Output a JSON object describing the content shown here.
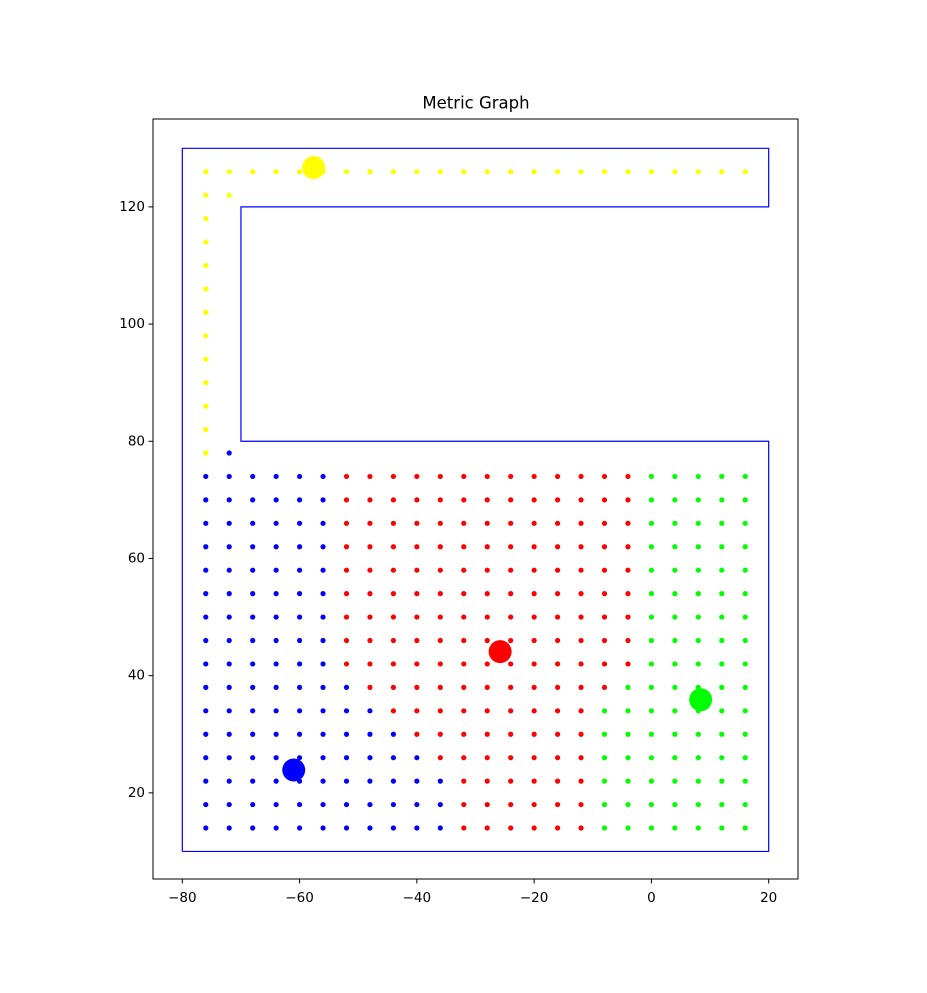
{
  "chart_data": {
    "type": "scatter",
    "title": "Metric Graph",
    "xlim": [
      -85,
      25
    ],
    "ylim": [
      5.3,
      135
    ],
    "xticks": [
      {
        "value": -80,
        "label": "−80"
      },
      {
        "value": -60,
        "label": "−60"
      },
      {
        "value": -40,
        "label": "−40"
      },
      {
        "value": -20,
        "label": "−20"
      },
      0,
      20
    ],
    "yticks": [
      20,
      40,
      60,
      80,
      100,
      120
    ],
    "boundary": {
      "color": "#0000ff",
      "x": [
        -80,
        20,
        20,
        -70,
        -70,
        20,
        20,
        -80,
        -80
      ],
      "y": [
        10,
        10,
        80,
        80,
        120,
        120,
        130,
        130,
        10
      ]
    },
    "series": [
      {
        "color": "#0000ff",
        "x": [
          -72,
          -76,
          -72,
          -68,
          -64,
          -60,
          -56,
          -76,
          -72,
          -68,
          -64,
          -60,
          -56,
          -76,
          -72,
          -68,
          -64,
          -60,
          -56,
          -76,
          -72,
          -68,
          -64,
          -60,
          -56,
          -76,
          -72,
          -68,
          -64,
          -60,
          -56,
          -76,
          -72,
          -68,
          -64,
          -60,
          -56,
          -76,
          -72,
          -68,
          -64,
          -60,
          -56,
          -76,
          -72,
          -68,
          -64,
          -60,
          -56,
          -76,
          -72,
          -68,
          -64,
          -60,
          -56,
          -76,
          -72,
          -68,
          -64,
          -60,
          -56,
          -52,
          -76,
          -72,
          -68,
          -64,
          -60,
          -56,
          -52,
          -48,
          -76,
          -72,
          -68,
          -64,
          -60,
          -56,
          -52,
          -48,
          -44,
          -76,
          -72,
          -68,
          -64,
          -60,
          -56,
          -52,
          -48,
          -44,
          -40,
          -76,
          -72,
          -68,
          -64,
          -60,
          -56,
          -52,
          -48,
          -44,
          -40,
          -36,
          -76,
          -72,
          -68,
          -64,
          -60,
          -56,
          -52,
          -48,
          -44,
          -40,
          -36,
          -76,
          -72,
          -68,
          -64,
          -60,
          -56,
          -52,
          -48,
          -44,
          -40,
          -36
        ],
        "y": [
          78,
          74,
          74,
          74,
          74,
          74,
          74,
          70,
          70,
          70,
          70,
          70,
          70,
          66,
          66,
          66,
          66,
          66,
          66,
          62,
          62,
          62,
          62,
          62,
          62,
          58,
          58,
          58,
          58,
          58,
          58,
          54,
          54,
          54,
          54,
          54,
          54,
          50,
          50,
          50,
          50,
          50,
          50,
          46,
          46,
          46,
          46,
          46,
          46,
          42,
          42,
          42,
          42,
          42,
          42,
          38,
          38,
          38,
          38,
          38,
          38,
          38,
          34,
          34,
          34,
          34,
          34,
          34,
          34,
          34,
          30,
          30,
          30,
          30,
          30,
          30,
          30,
          30,
          30,
          26,
          26,
          26,
          26,
          26,
          26,
          26,
          26,
          26,
          26,
          22,
          22,
          22,
          22,
          22,
          22,
          22,
          22,
          22,
          22,
          22,
          18,
          18,
          18,
          18,
          18,
          18,
          18,
          18,
          18,
          18,
          18,
          14,
          14,
          14,
          14,
          14,
          14,
          14,
          14,
          14,
          14,
          14
        ]
      },
      {
        "color": "#ff0000",
        "x": [
          -52,
          -48,
          -44,
          -40,
          -36,
          -32,
          -28,
          -24,
          -20,
          -16,
          -12,
          -8,
          -4,
          -52,
          -48,
          -44,
          -40,
          -36,
          -32,
          -28,
          -24,
          -20,
          -16,
          -12,
          -8,
          -4,
          -52,
          -48,
          -44,
          -40,
          -36,
          -32,
          -28,
          -24,
          -20,
          -16,
          -12,
          -8,
          -4,
          -52,
          -48,
          -44,
          -40,
          -36,
          -32,
          -28,
          -24,
          -20,
          -16,
          -12,
          -8,
          -4,
          -52,
          -48,
          -44,
          -40,
          -36,
          -32,
          -28,
          -24,
          -20,
          -16,
          -12,
          -8,
          -4,
          -52,
          -48,
          -44,
          -40,
          -36,
          -32,
          -28,
          -24,
          -20,
          -16,
          -12,
          -8,
          -4,
          -52,
          -48,
          -44,
          -40,
          -36,
          -32,
          -28,
          -24,
          -20,
          -16,
          -12,
          -8,
          -4,
          -52,
          -48,
          -44,
          -40,
          -36,
          -32,
          -28,
          -24,
          -20,
          -16,
          -12,
          -8,
          -4,
          -52,
          -48,
          -44,
          -40,
          -36,
          -32,
          -28,
          -24,
          -20,
          -16,
          -12,
          -8,
          -4,
          -48,
          -44,
          -40,
          -36,
          -32,
          -28,
          -24,
          -20,
          -16,
          -12,
          -8,
          -44,
          -40,
          -36,
          -32,
          -28,
          -24,
          -20,
          -16,
          -12,
          -40,
          -36,
          -32,
          -28,
          -24,
          -20,
          -16,
          -12,
          -36,
          -32,
          -28,
          -24,
          -20,
          -16,
          -12,
          -32,
          -28,
          -24,
          -20,
          -16,
          -12,
          -32,
          -28,
          -24,
          -20,
          -16,
          -12,
          -32,
          -28,
          -24,
          -20,
          -16,
          -12
        ],
        "y": [
          74,
          74,
          74,
          74,
          74,
          74,
          74,
          74,
          74,
          74,
          74,
          74,
          74,
          70,
          70,
          70,
          70,
          70,
          70,
          70,
          70,
          70,
          70,
          70,
          70,
          70,
          66,
          66,
          66,
          66,
          66,
          66,
          66,
          66,
          66,
          66,
          66,
          66,
          66,
          62,
          62,
          62,
          62,
          62,
          62,
          62,
          62,
          62,
          62,
          62,
          62,
          62,
          58,
          58,
          58,
          58,
          58,
          58,
          58,
          58,
          58,
          58,
          58,
          58,
          58,
          54,
          54,
          54,
          54,
          54,
          54,
          54,
          54,
          54,
          54,
          54,
          54,
          54,
          50,
          50,
          50,
          50,
          50,
          50,
          50,
          50,
          50,
          50,
          50,
          50,
          50,
          46,
          46,
          46,
          46,
          46,
          46,
          46,
          46,
          46,
          46,
          46,
          46,
          46,
          42,
          42,
          42,
          42,
          42,
          42,
          42,
          42,
          42,
          42,
          42,
          42,
          42,
          38,
          38,
          38,
          38,
          38,
          38,
          38,
          38,
          38,
          38,
          38,
          34,
          34,
          34,
          34,
          34,
          34,
          34,
          34,
          34,
          30,
          30,
          30,
          30,
          30,
          30,
          30,
          30,
          26,
          26,
          26,
          26,
          26,
          26,
          26,
          22,
          22,
          22,
          22,
          22,
          22,
          18,
          18,
          18,
          18,
          18,
          18,
          14,
          14,
          14,
          14,
          14,
          14
        ]
      },
      {
        "color": "#00ff00",
        "x": [
          0,
          4,
          8,
          12,
          16,
          0,
          4,
          8,
          12,
          16,
          0,
          4,
          8,
          12,
          16,
          0,
          4,
          8,
          12,
          16,
          0,
          4,
          8,
          12,
          16,
          0,
          4,
          8,
          12,
          16,
          0,
          4,
          8,
          12,
          16,
          0,
          4,
          8,
          12,
          16,
          0,
          4,
          8,
          12,
          16,
          -4,
          0,
          4,
          8,
          12,
          16,
          -8,
          -4,
          0,
          4,
          8,
          12,
          16,
          -8,
          -4,
          0,
          4,
          8,
          12,
          16,
          -8,
          -4,
          0,
          4,
          8,
          12,
          16,
          -8,
          -4,
          0,
          4,
          8,
          12,
          16,
          -8,
          -4,
          0,
          4,
          8,
          12,
          16,
          -8,
          -4,
          0,
          4,
          8,
          12,
          16
        ],
        "y": [
          74,
          74,
          74,
          74,
          74,
          70,
          70,
          70,
          70,
          70,
          66,
          66,
          66,
          66,
          66,
          62,
          62,
          62,
          62,
          62,
          58,
          58,
          58,
          58,
          58,
          54,
          54,
          54,
          54,
          54,
          50,
          50,
          50,
          50,
          50,
          46,
          46,
          46,
          46,
          46,
          42,
          42,
          42,
          42,
          42,
          38,
          38,
          38,
          38,
          38,
          38,
          34,
          34,
          34,
          34,
          34,
          34,
          34,
          30,
          30,
          30,
          30,
          30,
          30,
          30,
          26,
          26,
          26,
          26,
          26,
          26,
          26,
          22,
          22,
          22,
          22,
          22,
          22,
          22,
          18,
          18,
          18,
          18,
          18,
          18,
          18,
          14,
          14,
          14,
          14,
          14,
          14,
          14
        ]
      },
      {
        "color": "#ffff00",
        "x": [
          -76,
          -76,
          -76,
          -76,
          -76,
          -76,
          -76,
          -76,
          -76,
          -76,
          -76,
          -76,
          -72,
          -76,
          -72,
          -68,
          -64,
          -60,
          -56,
          -52,
          -48,
          -44,
          -40,
          -36,
          -32,
          -28,
          -24,
          -20,
          -16,
          -12,
          -8,
          -4,
          0,
          4,
          8,
          12,
          16
        ],
        "y": [
          78,
          82,
          86,
          90,
          94,
          98,
          102,
          106,
          110,
          114,
          118,
          122,
          122,
          126,
          126,
          126,
          126,
          126,
          126,
          126,
          126,
          126,
          126,
          126,
          126,
          126,
          126,
          126,
          126,
          126,
          126,
          126,
          126,
          126,
          126,
          126,
          126
        ]
      }
    ],
    "centroids": [
      {
        "color": "#ffff00",
        "x": [
          -57.6
        ],
        "y": [
          126.7
        ]
      },
      {
        "color": "#ff0000",
        "x": [
          -25.8
        ],
        "y": [
          44.1
        ]
      },
      {
        "color": "#00ff00",
        "x": [
          8.4
        ],
        "y": [
          35.9
        ]
      },
      {
        "color": "#0000ff",
        "x": [
          -61.0
        ],
        "y": [
          23.9
        ]
      }
    ]
  }
}
